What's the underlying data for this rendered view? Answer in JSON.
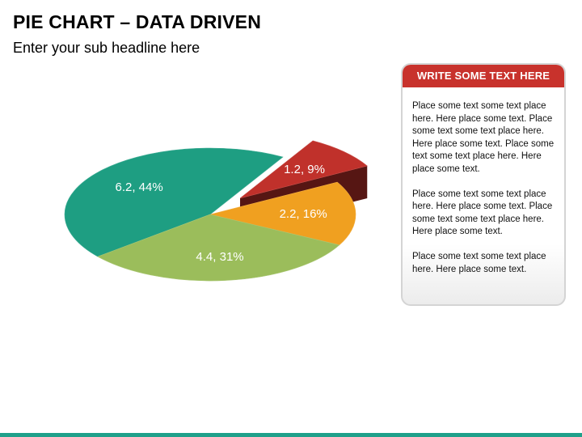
{
  "header": {
    "title": "PIE CHART – DATA DRIVEN",
    "subtitle": "Enter your sub headline here"
  },
  "chart_data": {
    "type": "pie",
    "title": "",
    "slices": [
      {
        "value": 6.2,
        "percent": 44,
        "label": "6.2, 44%",
        "color": "#1e9e82",
        "exploded": false
      },
      {
        "value": 4.4,
        "percent": 31,
        "label": "4.4, 31%",
        "color": "#9bbd5b",
        "exploded": false
      },
      {
        "value": 2.2,
        "percent": 16,
        "label": "2.2, 16%",
        "color": "#f0a020",
        "exploded": false
      },
      {
        "value": 1.2,
        "percent": 9,
        "label": "1.2, 9%",
        "color": "#c0312b",
        "exploded": true
      }
    ],
    "legend": "none",
    "style": "3d"
  },
  "textbox": {
    "header": "WRITE SOME TEXT HERE",
    "paragraphs": [
      "Place some text some text place here. Here place some text. Place some text some text place here. Here place some text. Place some text some text place here. Here place some text.",
      "Place some text some text place here. Here place some text. Place some text some text place here. Here place some text.",
      "Place some text some text place here. Here place some text."
    ]
  },
  "colors": {
    "accent_red": "#c8322c",
    "footer_teal": "#1fa08a"
  }
}
